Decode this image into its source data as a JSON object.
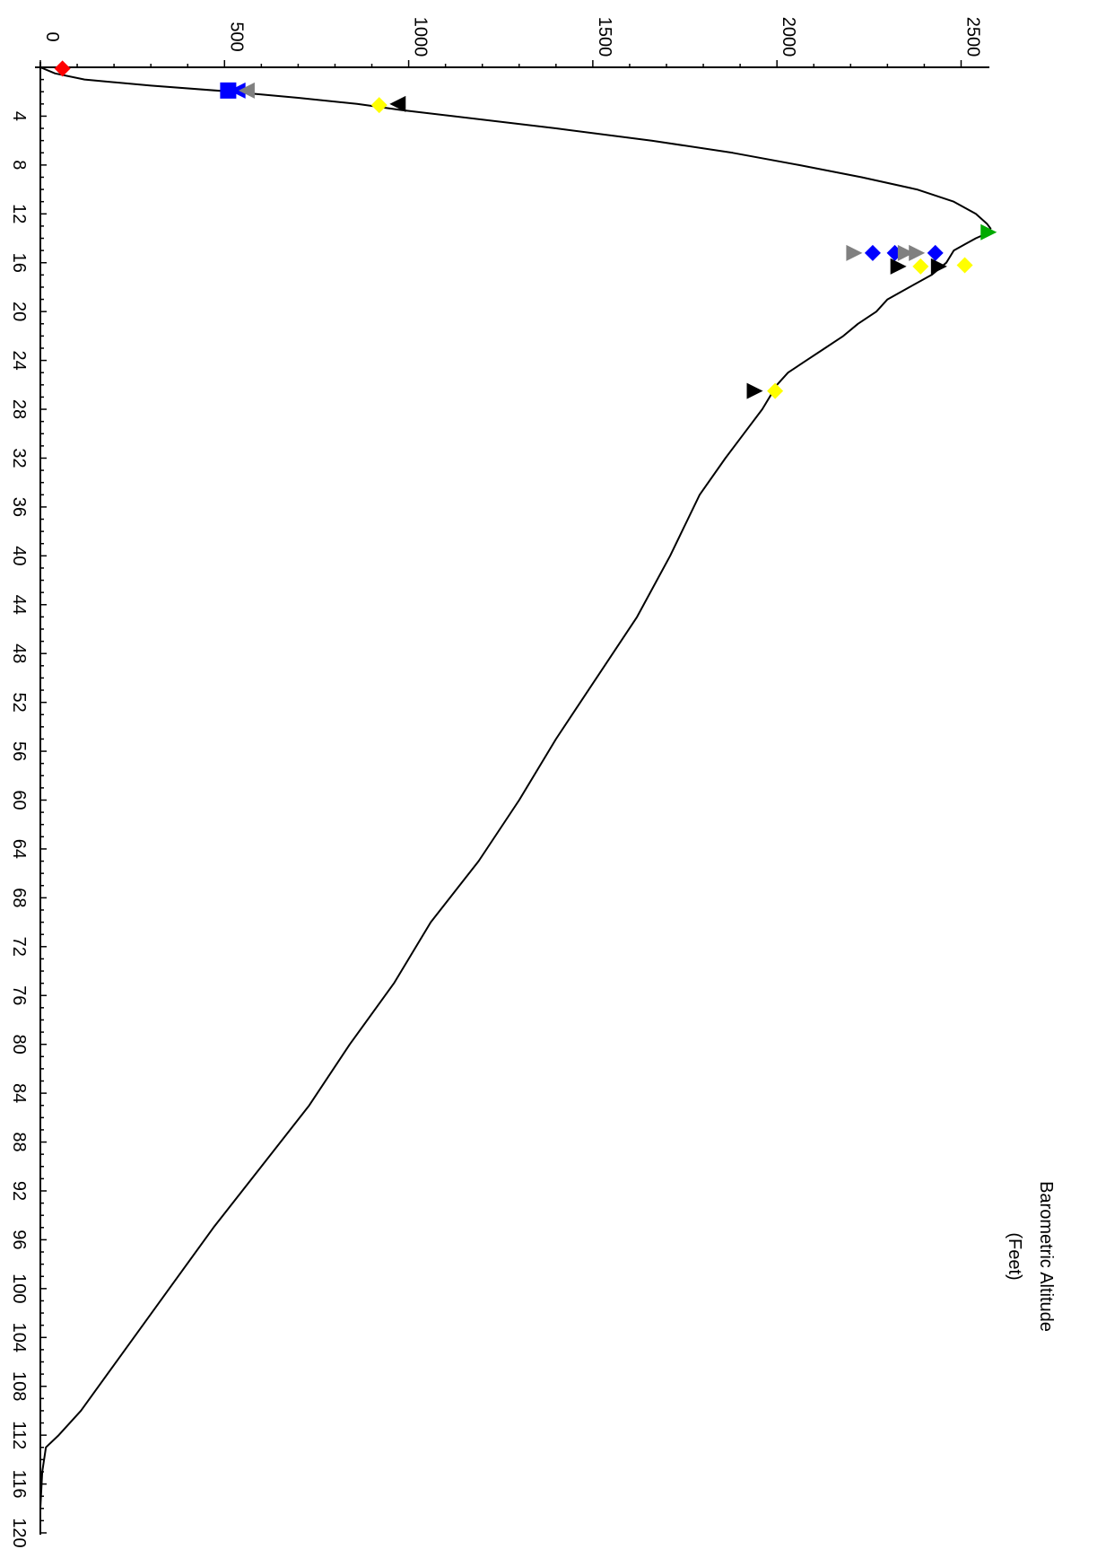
{
  "chart_data": {
    "type": "line",
    "orientation": "rotated-90-clockwise",
    "legend": {
      "label_line1": "Barometric Altitude",
      "label_line2": "(Feet)",
      "placement": "bottom-right"
    },
    "x_axis": {
      "label": "",
      "range": [
        0,
        120
      ],
      "ticks": [
        4,
        8,
        12,
        16,
        20,
        24,
        28,
        32,
        36,
        40,
        44,
        48,
        52,
        56,
        60,
        64,
        68,
        72,
        76,
        80,
        84,
        88,
        92,
        96,
        100,
        104,
        108,
        112,
        116,
        120
      ]
    },
    "y_axis": {
      "label": "",
      "range": [
        0,
        2550
      ],
      "ticks": [
        0,
        500,
        1000,
        1500,
        2000,
        2500
      ]
    },
    "series": [
      {
        "color": "#000000",
        "points": [
          [
            0,
            0
          ],
          [
            0.5,
            40
          ],
          [
            1,
            120
          ],
          [
            1.5,
            300
          ],
          [
            2,
            520
          ],
          [
            2.5,
            700
          ],
          [
            3,
            860
          ],
          [
            3.5,
            980
          ],
          [
            4,
            1120
          ],
          [
            5,
            1400
          ],
          [
            6,
            1660
          ],
          [
            7,
            1880
          ],
          [
            8,
            2060
          ],
          [
            9,
            2230
          ],
          [
            10,
            2380
          ],
          [
            11,
            2480
          ],
          [
            12,
            2540
          ],
          [
            12.8,
            2570
          ],
          [
            13.2,
            2580
          ],
          [
            13.6,
            2570
          ],
          [
            14,
            2540
          ],
          [
            14.5,
            2510
          ],
          [
            15,
            2480
          ],
          [
            15.5,
            2470
          ],
          [
            16,
            2460
          ],
          [
            17,
            2420
          ],
          [
            18,
            2360
          ],
          [
            19,
            2300
          ],
          [
            20,
            2270
          ],
          [
            21,
            2220
          ],
          [
            22,
            2180
          ],
          [
            23,
            2130
          ],
          [
            24,
            2080
          ],
          [
            25,
            2030
          ],
          [
            26,
            2000
          ],
          [
            28,
            1960
          ],
          [
            30,
            1910
          ],
          [
            32,
            1860
          ],
          [
            35,
            1790
          ],
          [
            40,
            1710
          ],
          [
            45,
            1620
          ],
          [
            50,
            1510
          ],
          [
            55,
            1400
          ],
          [
            60,
            1300
          ],
          [
            65,
            1190
          ],
          [
            70,
            1060
          ],
          [
            75,
            960
          ],
          [
            80,
            840
          ],
          [
            85,
            730
          ],
          [
            90,
            600
          ],
          [
            95,
            470
          ],
          [
            100,
            350
          ],
          [
            105,
            230
          ],
          [
            110,
            110
          ],
          [
            112,
            50
          ],
          [
            113,
            15
          ],
          [
            115,
            5
          ],
          [
            118,
            0
          ],
          [
            120,
            0
          ]
        ]
      }
    ],
    "markers": [
      {
        "shape": "diamond",
        "color": "#ff0000",
        "x": 0.1,
        "y": 60
      },
      {
        "shape": "square",
        "color": "#0000ff",
        "x": 1.9,
        "y": 510
      },
      {
        "shape": "triangle-left",
        "color": "#0000ff",
        "x": 1.9,
        "y": 535
      },
      {
        "shape": "triangle-left",
        "color": "#808080",
        "x": 1.9,
        "y": 560
      },
      {
        "shape": "diamond",
        "color": "#ffff00",
        "x": 3.1,
        "y": 920
      },
      {
        "shape": "triangle-left",
        "color": "#000000",
        "x": 3.0,
        "y": 970
      },
      {
        "shape": "triangle-right",
        "color": "#00aa00",
        "x": 13.5,
        "y": 2575
      },
      {
        "shape": "triangle-right",
        "color": "#808080",
        "x": 15.2,
        "y": 2210
      },
      {
        "shape": "diamond",
        "color": "#0000ff",
        "x": 15.2,
        "y": 2260
      },
      {
        "shape": "diamond",
        "color": "#0000ff",
        "x": 15.2,
        "y": 2320
      },
      {
        "shape": "triangle-right",
        "color": "#808080",
        "x": 15.2,
        "y": 2350
      },
      {
        "shape": "triangle-right",
        "color": "#808080",
        "x": 15.2,
        "y": 2380
      },
      {
        "shape": "diamond",
        "color": "#0000ff",
        "x": 15.2,
        "y": 2430
      },
      {
        "shape": "triangle-right",
        "color": "#000000",
        "x": 16.3,
        "y": 2330
      },
      {
        "shape": "diamond",
        "color": "#ffff00",
        "x": 16.3,
        "y": 2390
      },
      {
        "shape": "triangle-right",
        "color": "#000000",
        "x": 16.3,
        "y": 2440
      },
      {
        "shape": "diamond",
        "color": "#ffff00",
        "x": 16.2,
        "y": 2510
      },
      {
        "shape": "triangle-right",
        "color": "#000000",
        "x": 26.5,
        "y": 1940
      },
      {
        "shape": "diamond",
        "color": "#ffff00",
        "x": 26.5,
        "y": 1995
      }
    ],
    "grid": false
  }
}
